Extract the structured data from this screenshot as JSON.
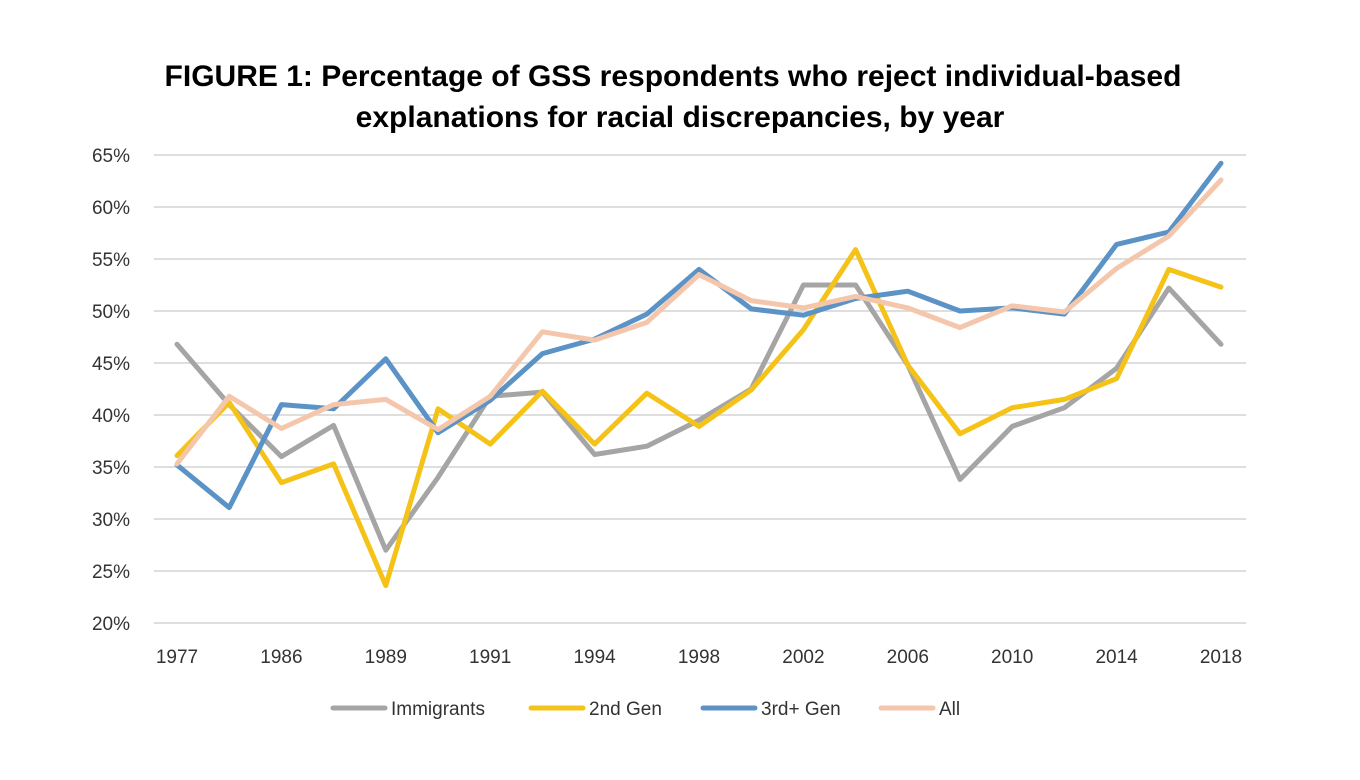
{
  "chart_data": {
    "type": "line",
    "title_lines": [
      "FIGURE 1: Percentage of GSS respondents who reject individual-based",
      "explanations for racial discrepancies, by year"
    ],
    "x_labels": [
      "1977",
      "",
      "1986",
      "",
      "1989",
      "",
      "1991",
      "",
      "1994",
      "",
      "1998",
      "",
      "2002",
      "",
      "2006",
      "",
      "2010",
      "",
      "2014",
      "",
      "2018"
    ],
    "y_ticks": [
      "20%",
      "25%",
      "30%",
      "35%",
      "40%",
      "45%",
      "50%",
      "55%",
      "60%",
      "65%"
    ],
    "ylim": [
      20,
      65
    ],
    "grid": true,
    "legend_position": "bottom",
    "series": [
      {
        "name": "Immigrants",
        "color": "#a5a5a5",
        "values": [
          46.8,
          41.0,
          36.0,
          39.0,
          27.0,
          34.0,
          41.8,
          42.2,
          36.2,
          37.0,
          39.5,
          42.5,
          52.5,
          52.5,
          44.8,
          33.8,
          38.9,
          40.7,
          44.5,
          52.2,
          46.8
        ]
      },
      {
        "name": "2nd Gen",
        "color": "#f5c218",
        "values": [
          36.1,
          41.2,
          33.5,
          35.3,
          23.6,
          40.6,
          37.2,
          42.3,
          37.2,
          42.1,
          38.9,
          42.4,
          48.2,
          55.9,
          44.8,
          38.2,
          40.7,
          41.5,
          43.5,
          54.0,
          52.3
        ]
      },
      {
        "name": "3rd+ Gen",
        "color": "#5b93c7",
        "values": [
          35.2,
          31.1,
          41.0,
          40.6,
          45.4,
          38.3,
          41.4,
          45.9,
          47.3,
          49.7,
          54.0,
          50.2,
          49.6,
          51.2,
          51.9,
          50.0,
          50.3,
          49.7,
          56.4,
          57.6,
          64.2
        ]
      },
      {
        "name": "All",
        "color": "#f4c7ad",
        "values": [
          35.3,
          41.8,
          38.7,
          41.0,
          41.5,
          38.6,
          41.8,
          48.0,
          47.2,
          48.9,
          53.5,
          51.0,
          50.3,
          51.4,
          50.3,
          48.4,
          50.5,
          49.9,
          54.1,
          57.2,
          62.6
        ]
      }
    ]
  }
}
